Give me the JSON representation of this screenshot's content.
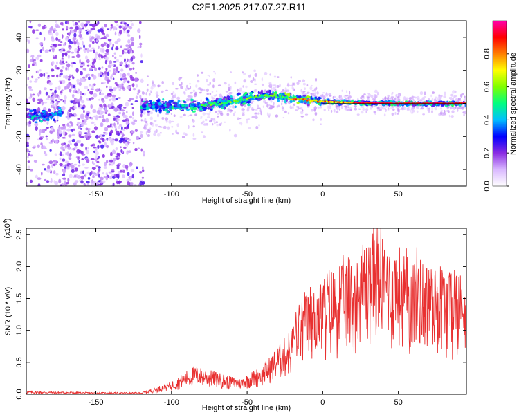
{
  "title": "C2E1.2025.217.07.27.R11",
  "chart_data": [
    {
      "type": "heatmap",
      "xlabel": "Height of straight line (km)",
      "ylabel": "Frequency (Hz)",
      "xlim": [
        -196,
        95
      ],
      "ylim": [
        -50,
        50
      ],
      "xticks": [
        -150,
        -100,
        -50,
        0,
        50
      ],
      "yticks": [
        -40,
        -20,
        0,
        20,
        40
      ],
      "colorbar": {
        "label": "Normalized spectral amplitude",
        "range": [
          0,
          1
        ],
        "ticks": [
          "0.0",
          "0.2",
          "0.4",
          "0.6",
          "0.8"
        ],
        "colors": [
          "#ffffff",
          "#d9b8ff",
          "#8a2be2",
          "#0000ff",
          "#00bfff",
          "#00ff7f",
          "#7fff00",
          "#ffff00",
          "#ff7f00",
          "#ff0000",
          "#ff00aa"
        ]
      },
      "ridge_centerline": [
        {
          "x": -190,
          "f": -8
        },
        {
          "x": -175,
          "f": -6
        },
        {
          "x": -120,
          "f": -2
        },
        {
          "x": -100,
          "f": -2
        },
        {
          "x": -80,
          "f": -1
        },
        {
          "x": -60,
          "f": 1
        },
        {
          "x": -45,
          "f": 4
        },
        {
          "x": -35,
          "f": 5
        },
        {
          "x": -20,
          "f": 3
        },
        {
          "x": 0,
          "f": 1
        },
        {
          "x": 20,
          "f": 0.5
        },
        {
          "x": 50,
          "f": 0
        },
        {
          "x": 92,
          "f": 0
        }
      ]
    },
    {
      "type": "line",
      "xlabel": "Height of straight line (km)",
      "ylabel": "SNR (10 * v/v)",
      "yscale_label": "(x10^4)",
      "xlim": [
        -196,
        95
      ],
      "ylim": [
        0,
        2.6
      ],
      "xticks": [
        -150,
        -100,
        -50,
        0,
        50
      ],
      "yticks": [
        "0.0",
        "0.5",
        "1.0",
        "1.5",
        "2.0",
        "2.5"
      ],
      "color": "#e83030",
      "envelope": [
        {
          "x": -196,
          "y": 0.05
        },
        {
          "x": -150,
          "y": 0.03
        },
        {
          "x": -120,
          "y": 0.03
        },
        {
          "x": -100,
          "y": 0.2
        },
        {
          "x": -85,
          "y": 0.45
        },
        {
          "x": -70,
          "y": 0.35
        },
        {
          "x": -55,
          "y": 0.25
        },
        {
          "x": -40,
          "y": 0.45
        },
        {
          "x": -25,
          "y": 0.9
        },
        {
          "x": -10,
          "y": 1.5
        },
        {
          "x": 5,
          "y": 1.8
        },
        {
          "x": 20,
          "y": 2.0
        },
        {
          "x": 35,
          "y": 2.5
        },
        {
          "x": 50,
          "y": 2.1
        },
        {
          "x": 70,
          "y": 2.0
        },
        {
          "x": 95,
          "y": 1.8
        }
      ]
    }
  ]
}
